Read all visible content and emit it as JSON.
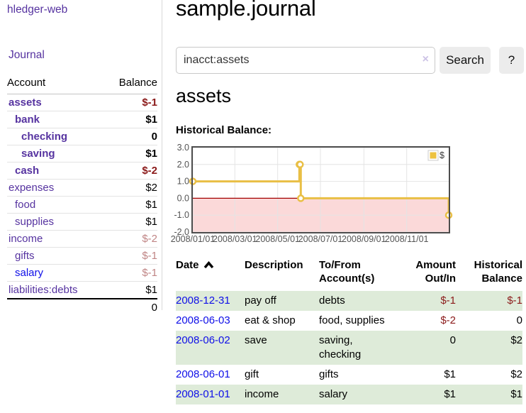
{
  "colors": {
    "link_purple": "#5633a0",
    "link_blue": "#0f0fe8",
    "negative_strong": "#8b1a1a",
    "negative_light": "#c08585",
    "row_shade_green": "#deebd9",
    "chart_line_gold": "#e9bf45",
    "legend_swatch_gold": "#edc240",
    "negative_region_pink": "#fbd9d9",
    "zero_line_red": "#a40000"
  },
  "sidebar": {
    "brand": "hledger-web",
    "nav_journal": "Journal",
    "accounts": {
      "headers": {
        "account": "Account",
        "balance": "Balance"
      },
      "rows": [
        {
          "name": "assets",
          "indent": 0,
          "bold": true,
          "link_color": "purple",
          "balance": "$-1",
          "balance_style": "bold-neg"
        },
        {
          "name": "bank",
          "indent": 1,
          "bold": true,
          "link_color": "purple",
          "balance": "$1",
          "balance_style": "bold"
        },
        {
          "name": "checking",
          "indent": 2,
          "bold": true,
          "link_color": "purple",
          "balance": "0",
          "balance_style": "bold"
        },
        {
          "name": "saving",
          "indent": 2,
          "bold": true,
          "link_color": "purple",
          "balance": "$1",
          "balance_style": "bold"
        },
        {
          "name": "cash",
          "indent": 1,
          "bold": true,
          "link_color": "purple",
          "balance": "$-2",
          "balance_style": "bold-neg"
        },
        {
          "name": "expenses",
          "indent": 0,
          "bold": false,
          "link_color": "purple",
          "balance": "$2",
          "balance_style": "plain"
        },
        {
          "name": "food",
          "indent": 1,
          "bold": false,
          "link_color": "purple",
          "balance": "$1",
          "balance_style": "plain"
        },
        {
          "name": "supplies",
          "indent": 1,
          "bold": false,
          "link_color": "purple",
          "balance": "$1",
          "balance_style": "plain"
        },
        {
          "name": "income",
          "indent": 0,
          "bold": false,
          "link_color": "purple",
          "balance": "$-2",
          "balance_style": "neg-light"
        },
        {
          "name": "gifts",
          "indent": 1,
          "bold": false,
          "link_color": "purple",
          "balance": "$-1",
          "balance_style": "neg-light"
        },
        {
          "name": "salary",
          "indent": 1,
          "bold": false,
          "link_color": "blue",
          "balance": "$-1",
          "balance_style": "neg-light"
        },
        {
          "name": "liabilities:debts",
          "indent": 0,
          "bold": false,
          "link_color": "purple",
          "balance": "$1",
          "balance_style": "plain"
        }
      ],
      "total": "0"
    }
  },
  "main": {
    "title": "sample.journal",
    "search": {
      "value": "inacct:assets",
      "clear_icon": "×",
      "search_button": "Search",
      "help_button": "?"
    },
    "account_heading": "assets",
    "chart_label": "Historical Balance:",
    "register": {
      "headers": [
        "Date",
        "Description",
        "To/From Account(s)",
        "Amount Out/In",
        "Historical Balance"
      ],
      "sort": {
        "column": "Date",
        "direction": "ascending"
      },
      "rows": [
        {
          "date": "2008-12-31",
          "description": "pay off",
          "accounts": "debts",
          "amount": "$-1",
          "amount_negative": true,
          "balance": "$-1",
          "balance_negative": true,
          "shaded": true
        },
        {
          "date": "2008-06-03",
          "description": "eat & shop",
          "accounts": "food, supplies",
          "amount": "$-2",
          "amount_negative": true,
          "balance": "0",
          "balance_negative": false,
          "shaded": false
        },
        {
          "date": "2008-06-02",
          "description": "save",
          "accounts": "saving,\nchecking",
          "amount": "0",
          "amount_negative": false,
          "balance": "$2",
          "balance_negative": false,
          "shaded": true
        },
        {
          "date": "2008-06-01",
          "description": "gift",
          "accounts": "gifts",
          "amount": "$1",
          "amount_negative": false,
          "balance": "$2",
          "balance_negative": false,
          "shaded": false
        },
        {
          "date": "2008-01-01",
          "description": "income",
          "accounts": "salary",
          "amount": "$1",
          "amount_negative": false,
          "balance": "$1",
          "balance_negative": false,
          "shaded": true
        }
      ]
    }
  },
  "chart_data": {
    "type": "line",
    "style": "step",
    "title": "Historical Balance",
    "series": [
      {
        "name": "$",
        "color": "#e9bf45",
        "points": [
          [
            "2008-01-01",
            1
          ],
          [
            "2008-06-01",
            2
          ],
          [
            "2008-06-02",
            2
          ],
          [
            "2008-06-03",
            0
          ],
          [
            "2008-12-31",
            -1
          ]
        ]
      }
    ],
    "xlim": [
      "2008-01-01",
      "2008-12-31"
    ],
    "ylim": [
      -2,
      3
    ],
    "x_ticks": [
      "2008/01/01",
      "2008/03/01",
      "2008/05/01",
      "2008/07/01",
      "2008/09/01",
      "2008/11/01"
    ],
    "y_ticks": [
      3.0,
      2.0,
      1.0,
      0.0,
      -1.0,
      -2.0
    ],
    "grid": true,
    "legend": {
      "position": "top-right",
      "label": "$"
    },
    "negative_region_fill": "#fbd9d9",
    "zero_line_color": "#a40000"
  }
}
